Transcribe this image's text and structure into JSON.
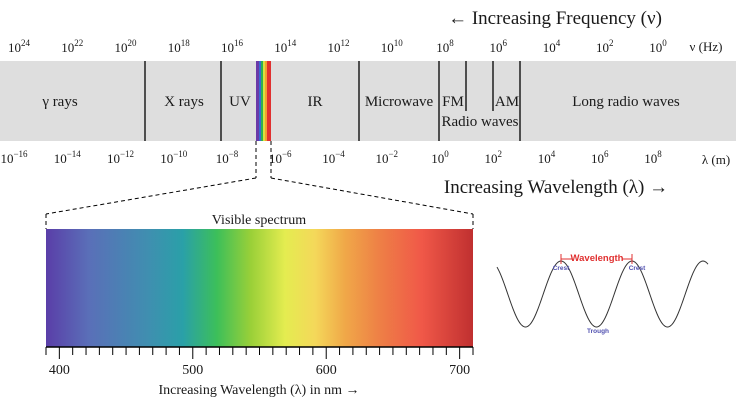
{
  "frequency_axis": {
    "heading": "← Increasing Frequency (ν)",
    "unit": "ν (Hz)",
    "ticks": [
      {
        "base": "10",
        "exp": "24"
      },
      {
        "base": "10",
        "exp": "22"
      },
      {
        "base": "10",
        "exp": "20"
      },
      {
        "base": "10",
        "exp": "18"
      },
      {
        "base": "10",
        "exp": "16"
      },
      {
        "base": "10",
        "exp": "14"
      },
      {
        "base": "10",
        "exp": "12"
      },
      {
        "base": "10",
        "exp": "10"
      },
      {
        "base": "10",
        "exp": "8"
      },
      {
        "base": "10",
        "exp": "6"
      },
      {
        "base": "10",
        "exp": "4"
      },
      {
        "base": "10",
        "exp": "2"
      },
      {
        "base": "10",
        "exp": "0"
      }
    ]
  },
  "wavelength_axis": {
    "heading": "Increasing Wavelength (λ) →",
    "unit": "λ (m)",
    "ticks": [
      {
        "base": "10",
        "exp": "−16"
      },
      {
        "base": "10",
        "exp": "−14"
      },
      {
        "base": "10",
        "exp": "−12"
      },
      {
        "base": "10",
        "exp": "−10"
      },
      {
        "base": "10",
        "exp": "−8"
      },
      {
        "base": "10",
        "exp": "−6"
      },
      {
        "base": "10",
        "exp": "−4"
      },
      {
        "base": "10",
        "exp": "−2"
      },
      {
        "base": "10",
        "exp": "0"
      },
      {
        "base": "10",
        "exp": "2"
      },
      {
        "base": "10",
        "exp": "4"
      },
      {
        "base": "10",
        "exp": "6"
      },
      {
        "base": "10",
        "exp": "8"
      }
    ]
  },
  "bands": {
    "gamma": "γ rays",
    "xray": "X rays",
    "uv": "UV",
    "ir": "IR",
    "microwave": "Microwave",
    "fm": "FM",
    "am": "AM",
    "radio": "Radio waves",
    "long_radio": "Long radio waves"
  },
  "visible": {
    "title": "Visible spectrum",
    "axis_label": "Increasing Wavelength (λ) in nm →",
    "tick_labels": [
      "400",
      "500",
      "600",
      "700"
    ],
    "range_nm": [
      390,
      710
    ]
  },
  "wave": {
    "wavelength_label": "Wavelength",
    "crest_label": "Crest",
    "trough_label": "Trough",
    "label_color": "#e03030",
    "crest_color": "#5050b0"
  },
  "colors": {
    "band_fill": "#dedede",
    "axis": "#000000"
  }
}
